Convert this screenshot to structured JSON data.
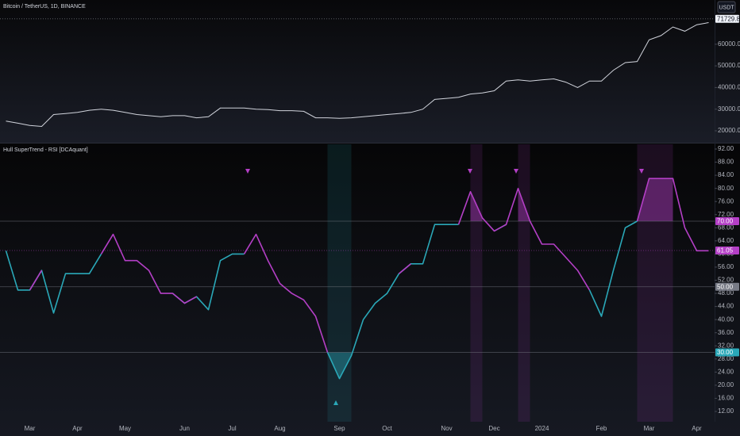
{
  "chart_data": [
    {
      "type": "line",
      "title": "Bitcoin / TetherUS, 1D, BINANCE",
      "currency": "USDT",
      "color": "#d1d4dc",
      "values": [
        24500,
        23500,
        22500,
        22000,
        27500,
        28000,
        28500,
        29500,
        30000,
        29500,
        28500,
        27500,
        27000,
        26500,
        27000,
        27000,
        26000,
        26500,
        30500,
        30500,
        30500,
        30000,
        29800,
        29300,
        29300,
        29000,
        26000,
        26000,
        25800,
        26000,
        26500,
        27000,
        27500,
        28000,
        28500,
        30000,
        34500,
        35000,
        35500,
        37000,
        37500,
        38500,
        43000,
        43500,
        43000,
        43500,
        44000,
        42500,
        40000,
        43000,
        43000,
        48000,
        51500,
        52000,
        62000,
        64000,
        68000,
        66000,
        69000,
        70000
      ],
      "last_price": 71729.89,
      "ylim": [
        15240,
        80440
      ],
      "yticks": [
        {
          "value": 20000,
          "label": "20000.00"
        },
        {
          "value": 30000,
          "label": "30000.00"
        },
        {
          "value": 40000,
          "label": "40000.00"
        },
        {
          "value": 50000,
          "label": "50000.00"
        },
        {
          "value": 60000,
          "label": "60000.00"
        }
      ]
    },
    {
      "type": "line",
      "title": "Hull SuperTrend - RSI [DCAquant]",
      "categories": [
        null,
        null,
        "Mar",
        null,
        null,
        null,
        "Apr",
        null,
        null,
        null,
        "May",
        null,
        null,
        null,
        null,
        "Jun",
        null,
        null,
        null,
        "Jul",
        null,
        null,
        null,
        "Aug",
        null,
        null,
        null,
        null,
        "Sep",
        null,
        null,
        null,
        "Oct",
        null,
        null,
        null,
        null,
        "Nov",
        null,
        null,
        null,
        "Dec",
        null,
        null,
        null,
        "2024",
        null,
        null,
        null,
        null,
        "Feb",
        null,
        null,
        null,
        "Mar",
        null,
        null,
        null,
        "Apr",
        null
      ],
      "series": [
        {
          "color": "#2aa8b8",
          "values": [
            61,
            49,
            49,
            55,
            42,
            54,
            54,
            54,
            60,
            null,
            null,
            null,
            null,
            null,
            48,
            45,
            47,
            43,
            58,
            60,
            60,
            null,
            null,
            null,
            null,
            null,
            null,
            30,
            22,
            29,
            40,
            45,
            48,
            54,
            57,
            57,
            69,
            69,
            69,
            null,
            null,
            67,
            69,
            null,
            null,
            null,
            null,
            59,
            null,
            49,
            41,
            55,
            68,
            70,
            null,
            null,
            null,
            null,
            null,
            null
          ]
        },
        {
          "color": "#b43fc6",
          "values": [
            61,
            null,
            49,
            55,
            null,
            null,
            null,
            null,
            60,
            66,
            58,
            58,
            55,
            48,
            48,
            45,
            47,
            null,
            null,
            null,
            60,
            66,
            58,
            51,
            48,
            46,
            41,
            30,
            null,
            null,
            null,
            null,
            null,
            54,
            57,
            null,
            null,
            null,
            69,
            79,
            71,
            67,
            69,
            80,
            70,
            63,
            63,
            59,
            55,
            49,
            null,
            null,
            null,
            70,
            83,
            83,
            83,
            68,
            61,
            61
          ]
        }
      ],
      "levels": [
        {
          "value": 70,
          "label": "70.00"
        },
        {
          "value": 50,
          "label": "50.00"
        },
        {
          "value": 30,
          "label": "30.00"
        }
      ],
      "last_value": 61.05,
      "ylim": [
        8.86,
        93.45
      ],
      "yticks": [
        {
          "value": 12,
          "label": "12.00"
        },
        {
          "value": 16,
          "label": "16.00"
        },
        {
          "value": 20,
          "label": "20.00"
        },
        {
          "value": 24,
          "label": "24.00"
        },
        {
          "value": 28,
          "label": "28.00"
        },
        {
          "value": 32,
          "label": "32.00"
        },
        {
          "value": 36,
          "label": "36.00"
        },
        {
          "value": 40,
          "label": "40.00"
        },
        {
          "value": 44,
          "label": "44.00"
        },
        {
          "value": 48,
          "label": "48.00"
        },
        {
          "value": 52,
          "label": "52.00"
        },
        {
          "value": 56,
          "label": "56.00"
        },
        {
          "value": 60,
          "label": "60.00"
        },
        {
          "value": 64,
          "label": "64.00"
        },
        {
          "value": 68,
          "label": "68.00"
        },
        {
          "value": 72,
          "label": "72.00"
        },
        {
          "value": 76,
          "label": "76.00"
        },
        {
          "value": 80,
          "label": "80.00"
        },
        {
          "value": 84,
          "label": "84.00"
        },
        {
          "value": 88,
          "label": "88.00"
        },
        {
          "value": 92,
          "label": "92.00"
        }
      ]
    }
  ]
}
